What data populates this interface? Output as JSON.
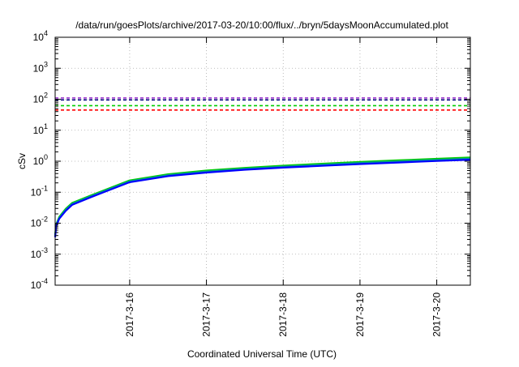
{
  "chart_data": {
    "type": "line",
    "title": "/data/run/goesPlots/archive/2017-03-20/10:00/flux/../bryn/5daysMoonAccumulated.plot",
    "xlabel": "Coordinated Universal Time (UTC)",
    "ylabel": "cSv",
    "x_scale": "time",
    "y_scale": "log",
    "xlim": [
      "2017-03-15T00:42",
      "2017-03-20T10:30"
    ],
    "ylim": [
      0.0001,
      10000
    ],
    "grid": true,
    "x_ticks": [
      "2017-3-16",
      "2017-3-17",
      "2017-3-18",
      "2017-3-19",
      "2017-3-20"
    ],
    "y_ticks": [
      {
        "base": "10",
        "exp": "-4",
        "value": 0.0001
      },
      {
        "base": "10",
        "exp": "-3",
        "value": 0.001
      },
      {
        "base": "10",
        "exp": "-2",
        "value": 0.01
      },
      {
        "base": "10",
        "exp": "-1",
        "value": 0.1
      },
      {
        "base": "10",
        "exp": "0",
        "value": 1
      },
      {
        "base": "10",
        "exp": "1",
        "value": 10
      },
      {
        "base": "10",
        "exp": "2",
        "value": 100
      },
      {
        "base": "10",
        "exp": "3",
        "value": 1000
      },
      {
        "base": "10",
        "exp": "4",
        "value": 10000
      }
    ],
    "thresholds": [
      {
        "value": 110,
        "color": "#9933cc",
        "style": "dashed"
      },
      {
        "value": 95,
        "color": "#000080",
        "style": "dashed"
      },
      {
        "value": 62,
        "color": "#00cc00",
        "style": "dashed"
      },
      {
        "value": 45,
        "color": "#ff0000",
        "style": "dashed"
      }
    ],
    "series": [
      {
        "color": "#00cc00",
        "x": [
          "2017-03-15T00:42",
          "2017-03-15T01:00",
          "2017-03-15T02:00",
          "2017-03-15T04:00",
          "2017-03-15T06:00",
          "2017-03-15T12:00",
          "2017-03-16T00:00",
          "2017-03-16T12:00",
          "2017-03-17T00:00",
          "2017-03-17T12:00",
          "2017-03-18T00:00",
          "2017-03-18T12:00",
          "2017-03-19T00:00",
          "2017-03-19T12:00",
          "2017-03-20T00:00",
          "2017-03-20T10:30"
        ],
        "values": [
          0.004,
          0.009,
          0.016,
          0.029,
          0.045,
          0.08,
          0.24,
          0.38,
          0.5,
          0.61,
          0.72,
          0.83,
          0.95,
          1.07,
          1.2,
          1.32
        ]
      },
      {
        "color": "#009999",
        "x": [
          "2017-03-15T00:42",
          "2017-03-15T01:00",
          "2017-03-15T02:00",
          "2017-03-15T04:00",
          "2017-03-15T06:00",
          "2017-03-15T12:00",
          "2017-03-16T00:00",
          "2017-03-16T12:00",
          "2017-03-17T00:00",
          "2017-03-17T12:00",
          "2017-03-18T00:00",
          "2017-03-18T12:00",
          "2017-03-19T00:00",
          "2017-03-19T12:00",
          "2017-03-20T00:00",
          "2017-03-20T10:30"
        ],
        "values": [
          0.0037,
          0.0085,
          0.015,
          0.027,
          0.042,
          0.075,
          0.225,
          0.355,
          0.465,
          0.57,
          0.67,
          0.77,
          0.88,
          0.99,
          1.11,
          1.22
        ]
      },
      {
        "color": "#0000ff",
        "x": [
          "2017-03-15T00:42",
          "2017-03-15T01:00",
          "2017-03-15T02:00",
          "2017-03-15T04:00",
          "2017-03-15T06:00",
          "2017-03-15T12:00",
          "2017-03-16T00:00",
          "2017-03-16T12:00",
          "2017-03-17T00:00",
          "2017-03-17T12:00",
          "2017-03-18T00:00",
          "2017-03-18T12:00",
          "2017-03-19T00:00",
          "2017-03-19T12:00",
          "2017-03-20T00:00",
          "2017-03-20T10:30"
        ],
        "values": [
          0.0035,
          0.008,
          0.014,
          0.025,
          0.039,
          0.07,
          0.21,
          0.33,
          0.43,
          0.53,
          0.62,
          0.71,
          0.81,
          0.91,
          1.02,
          1.12
        ]
      }
    ]
  }
}
